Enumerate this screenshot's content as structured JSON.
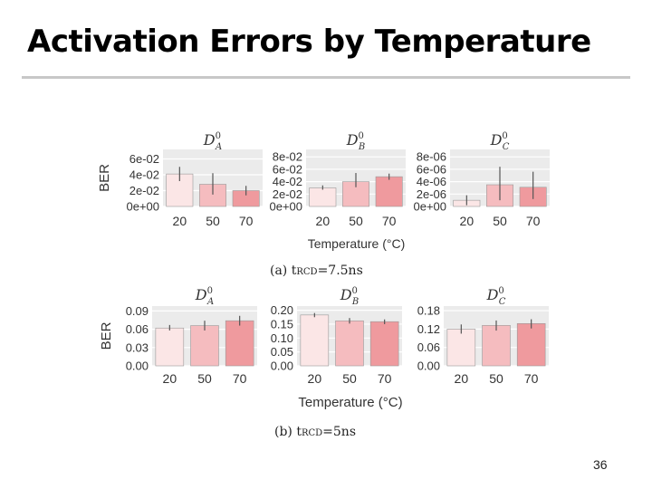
{
  "slide": {
    "title": "Activation Errors by Temperature",
    "page_number": "36"
  },
  "colors": {
    "bar_20": "#fbe6e6",
    "bar_50": "#f5bcbf",
    "bar_70": "#ef9a9e",
    "bar_edge": "#999999",
    "grid": "#d9d9d9",
    "panel_bg": "#ebebeb"
  },
  "chart_data": [
    {
      "type": "bar",
      "group": "a",
      "caption_prefix": "(a) t",
      "caption_sub": "RCD",
      "caption_suffix": "=7.5ns",
      "xlabel": "Temperature (°C)",
      "ylabel": "BER",
      "panels": [
        {
          "title_base": "D",
          "title_sup": "0",
          "title_sub": "A",
          "categories": [
            "20",
            "50",
            "70"
          ],
          "values": [
            0.041,
            0.028,
            0.02
          ],
          "error": [
            [
              0.032,
              0.05
            ],
            [
              0.015,
              0.042
            ],
            [
              0.014,
              0.026
            ]
          ],
          "ylim": [
            0,
            0.072
          ],
          "ticks": [
            0,
            0.02,
            0.04,
            0.06
          ],
          "tick_labels": [
            "0e+00",
            "2e-02",
            "4e-02",
            "6e-02"
          ]
        },
        {
          "title_base": "D",
          "title_sup": "0",
          "title_sub": "B",
          "categories": [
            "20",
            "50",
            "70"
          ],
          "values": [
            0.03,
            0.04,
            0.048
          ],
          "error": [
            [
              0.027,
              0.034
            ],
            [
              0.031,
              0.054
            ],
            [
              0.043,
              0.053
            ]
          ],
          "ylim": [
            0,
            0.092
          ],
          "ticks": [
            0,
            0.02,
            0.04,
            0.06,
            0.08
          ],
          "tick_labels": [
            "0e+00",
            "2e-02",
            "4e-02",
            "6e-02",
            "8e-02"
          ]
        },
        {
          "title_base": "D",
          "title_sup": "0",
          "title_sub": "C",
          "categories": [
            "20",
            "50",
            "70"
          ],
          "values": [
            1e-06,
            3.5e-06,
            3.1e-06
          ],
          "error": [
            [
              2e-07,
              1.8e-06
            ],
            [
              1e-06,
              6.4e-06
            ],
            [
              1.2e-06,
              5.6e-06
            ]
          ],
          "ylim": [
            0,
            9.2e-06
          ],
          "ticks": [
            0,
            2e-06,
            4e-06,
            6e-06,
            8e-06
          ],
          "tick_labels": [
            "0e+00",
            "2e-06",
            "4e-06",
            "6e-06",
            "8e-06"
          ]
        }
      ]
    },
    {
      "type": "bar",
      "group": "b",
      "caption_prefix": "(b) t",
      "caption_sub": "RCD",
      "caption_suffix": "=5ns",
      "xlabel": "Temperature (°C)",
      "ylabel": "BER",
      "panels": [
        {
          "title_base": "D",
          "title_sup": "0",
          "title_sub": "A",
          "categories": [
            "20",
            "50",
            "70"
          ],
          "values": [
            0.062,
            0.066,
            0.074
          ],
          "error": [
            [
              0.058,
              0.067
            ],
            [
              0.058,
              0.074
            ],
            [
              0.066,
              0.082
            ]
          ],
          "ylim": [
            0,
            0.098
          ],
          "ticks": [
            0,
            0.03,
            0.06,
            0.09
          ],
          "tick_labels": [
            "0.00",
            "0.03",
            "0.06",
            "0.09"
          ]
        },
        {
          "title_base": "D",
          "title_sup": "0",
          "title_sub": "B",
          "categories": [
            "20",
            "50",
            "70"
          ],
          "values": [
            0.183,
            0.162,
            0.159
          ],
          "error": [
            [
              0.175,
              0.19
            ],
            [
              0.152,
              0.172
            ],
            [
              0.15,
              0.167
            ]
          ],
          "ylim": [
            0,
            0.215
          ],
          "ticks": [
            0,
            0.05,
            0.1,
            0.15,
            0.2
          ],
          "tick_labels": [
            "0.00",
            "0.05",
            "0.10",
            "0.15",
            "0.20"
          ]
        },
        {
          "title_base": "D",
          "title_sup": "0",
          "title_sub": "C",
          "categories": [
            "20",
            "50",
            "70"
          ],
          "values": [
            0.12,
            0.132,
            0.138
          ],
          "error": [
            [
              0.105,
              0.135
            ],
            [
              0.115,
              0.148
            ],
            [
              0.122,
              0.152
            ]
          ],
          "ylim": [
            0,
            0.195
          ],
          "ticks": [
            0,
            0.06,
            0.12,
            0.18
          ],
          "tick_labels": [
            "0.00",
            "0.06",
            "0.12",
            "0.18"
          ]
        }
      ]
    }
  ]
}
